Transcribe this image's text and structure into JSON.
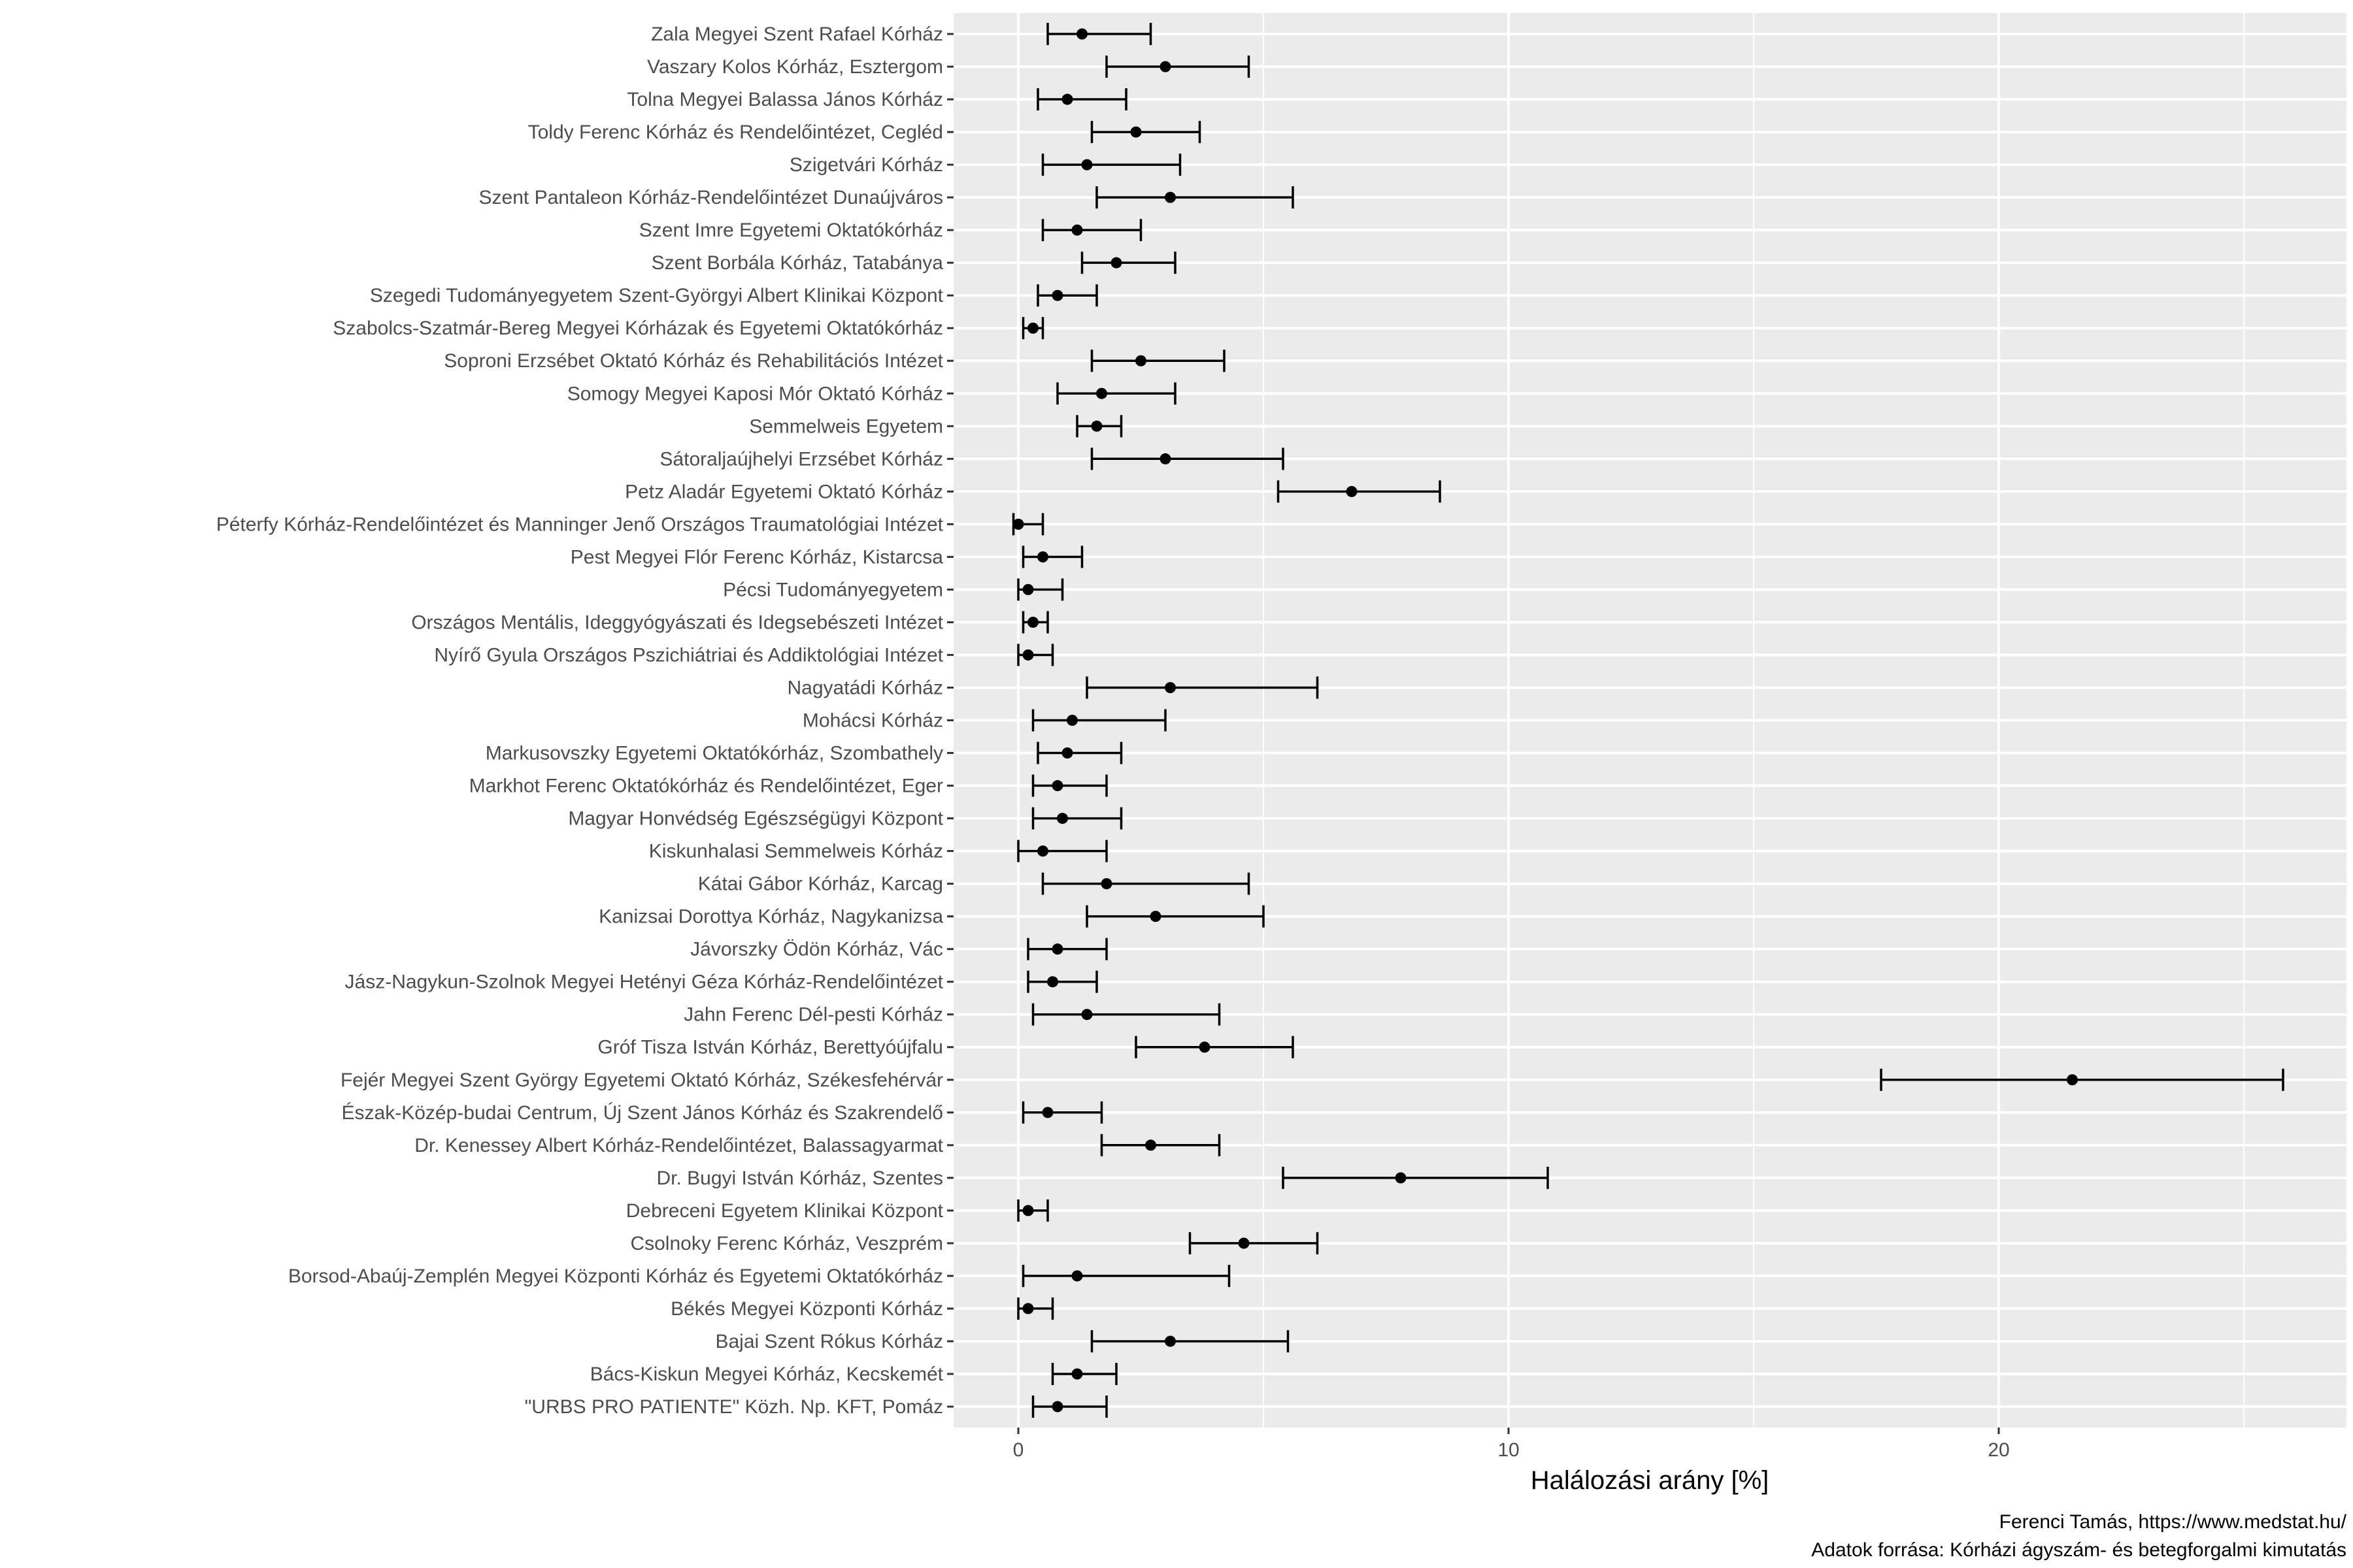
{
  "colors": {
    "panel_background": "#ebebeb",
    "grid_major": "#ffffff",
    "point": "#000000",
    "tick_label": "#4d4d4d"
  },
  "caption": {
    "line1": "Ferenci Tamás, https://www.medstat.hu/",
    "line2": "Adatok forrása: Kórházi ágyszám- és betegforgalmi kimutatás"
  },
  "chart_data": {
    "type": "errorbar",
    "title": "",
    "xlabel": "Halálozási arány [%]",
    "ylabel": "",
    "xlim": [
      -1.3,
      27.0
    ],
    "x_ticks": [
      0,
      10,
      20
    ],
    "grid": true,
    "legend": "none",
    "categories": [
      "Zala Megyei Szent Rafael Kórház",
      "Vaszary Kolos Kórház, Esztergom",
      "Tolna Megyei Balassa János Kórház",
      "Toldy Ferenc Kórház és Rendelőintézet, Cegléd",
      "Szigetvári Kórház",
      "Szent Pantaleon Kórház-Rendelőintézet Dunaújváros",
      "Szent Imre Egyetemi Oktatókórház",
      "Szent Borbála Kórház, Tatabánya",
      "Szegedi Tudományegyetem Szent-Györgyi Albert Klinikai Központ",
      "Szabolcs-Szatmár-Bereg Megyei Kórházak és Egyetemi Oktatókórház",
      "Soproni Erzsébet Oktató Kórház és Rehabilitációs Intézet",
      "Somogy Megyei Kaposi Mór Oktató Kórház",
      "Semmelweis Egyetem",
      "Sátoraljaújhelyi Erzsébet Kórház",
      "Petz Aladár Egyetemi Oktató Kórház",
      "Péterfy Kórház-Rendelőintézet és Manninger Jenő Országos Traumatológiai Intézet",
      "Pest Megyei Flór Ferenc Kórház, Kistarcsa",
      "Pécsi Tudományegyetem",
      "Országos Mentális, Ideggyógyászati és Idegsebészeti Intézet",
      "Nyírő Gyula Országos Pszichiátriai és Addiktológiai Intézet",
      "Nagyatádi Kórház",
      "Mohácsi Kórház",
      "Markusovszky Egyetemi Oktatókórház, Szombathely",
      "Markhot Ferenc Oktatókórház és Rendelőintézet, Eger",
      "Magyar Honvédség Egészségügyi Központ",
      "Kiskunhalasi Semmelweis Kórház",
      "Kátai Gábor Kórház, Karcag",
      "Kanizsai Dorottya Kórház, Nagykanizsa",
      "Jávorszky Ödön Kórház, Vác",
      "Jász-Nagykun-Szolnok Megyei Hetényi Géza Kórház-Rendelőintézet",
      "Jahn Ferenc Dél-pesti Kórház",
      "Gróf Tisza István Kórház, Berettyóújfalu",
      "Fejér Megyei Szent György Egyetemi Oktató Kórház, Székesfehérvár",
      "Észak-Közép-budai Centrum, Új Szent János Kórház és Szakrendelő",
      "Dr. Kenessey Albert Kórház-Rendelőintézet, Balassagyarmat",
      "Dr. Bugyi István Kórház, Szentes",
      "Debreceni Egyetem Klinikai Központ",
      "Csolnoky Ferenc Kórház, Veszprém",
      "Borsod-Abaúj-Zemplén Megyei Központi Kórház és Egyetemi Oktatókórház",
      "Békés Megyei Központi Kórház",
      "Bajai Szent Rókus Kórház",
      "Bács-Kiskun Megyei Kórház, Kecskemét",
      "\"URBS PRO PATIENTE\" Közh. Np. KFT, Pomáz"
    ],
    "estimate": [
      1.3,
      3.0,
      1.0,
      2.4,
      1.4,
      3.1,
      1.2,
      2.0,
      0.8,
      0.3,
      2.5,
      1.7,
      1.6,
      3.0,
      6.8,
      0.0,
      0.5,
      0.2,
      0.3,
      0.2,
      3.1,
      1.1,
      1.0,
      0.8,
      0.9,
      0.5,
      1.8,
      2.8,
      0.8,
      0.7,
      1.4,
      3.8,
      21.5,
      0.6,
      2.7,
      7.8,
      0.2,
      4.6,
      1.2,
      0.2,
      3.1,
      1.2,
      0.8
    ],
    "lower": [
      0.6,
      1.8,
      0.4,
      1.5,
      0.5,
      1.6,
      0.5,
      1.3,
      0.4,
      0.1,
      1.5,
      0.8,
      1.2,
      1.5,
      5.3,
      -0.1,
      0.1,
      0.0,
      0.1,
      0.0,
      1.4,
      0.3,
      0.4,
      0.3,
      0.3,
      0.0,
      0.5,
      1.4,
      0.2,
      0.2,
      0.3,
      2.4,
      17.6,
      0.1,
      1.7,
      5.4,
      0.0,
      3.5,
      0.1,
      0.0,
      1.5,
      0.7,
      0.3
    ],
    "upper": [
      2.7,
      4.7,
      2.2,
      3.7,
      3.3,
      5.6,
      2.5,
      3.2,
      1.6,
      0.5,
      4.2,
      3.2,
      2.1,
      5.4,
      8.6,
      0.5,
      1.3,
      0.9,
      0.6,
      0.7,
      6.1,
      3.0,
      2.1,
      1.8,
      2.1,
      1.8,
      4.7,
      5.0,
      1.8,
      1.6,
      4.1,
      5.6,
      25.8,
      1.7,
      4.1,
      10.8,
      0.6,
      6.1,
      4.3,
      0.7,
      5.5,
      2.0,
      1.8
    ]
  }
}
